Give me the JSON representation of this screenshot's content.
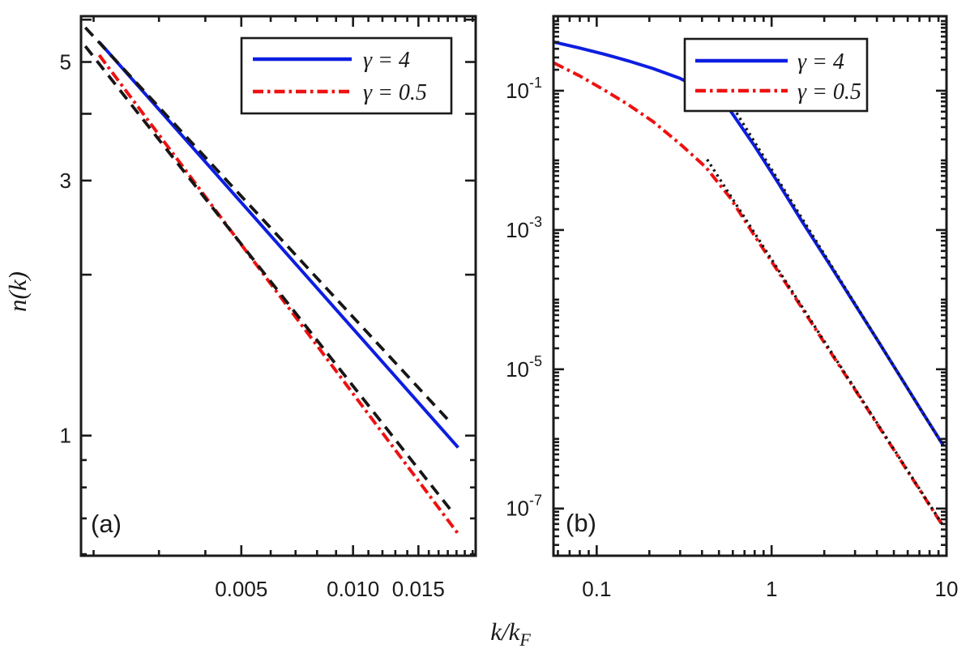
{
  "figure": {
    "xlabel_main": "k/k",
    "xlabel_sub": "F",
    "ylabel": "n(k)",
    "background": "#ffffff",
    "frame_color": "#1a1a1a",
    "legend_items": [
      {
        "label": "γ = 4",
        "series": "gamma4"
      },
      {
        "label": "γ = 0.5",
        "series": "gamma05"
      }
    ]
  },
  "chart_data": [
    {
      "id": "a",
      "tag": "(a)",
      "type": "line",
      "x_scale": "log",
      "y_scale": "log",
      "xlim": [
        0.00185,
        0.0214
      ],
      "ylim": [
        0.596,
        6.09
      ],
      "x_ticks_major": [
        {
          "v": 0.005,
          "label": "0.005"
        },
        {
          "v": 0.01,
          "label": "0.010"
        },
        {
          "v": 0.015,
          "label": "0.015"
        }
      ],
      "x_ticks_minor": [
        0.002,
        0.003,
        0.004,
        0.006,
        0.007,
        0.008,
        0.009,
        0.011,
        0.012,
        0.013,
        0.014,
        0.016,
        0.017,
        0.018,
        0.019,
        0.02,
        0.021
      ],
      "y_ticks_major": [
        {
          "v": 1,
          "label": "1"
        },
        {
          "v": 2
        },
        {
          "v": 3,
          "label": "3"
        },
        {
          "v": 4
        },
        {
          "v": 5,
          "label": "5"
        },
        {
          "v": 6
        }
      ],
      "y_ticks_minor": [
        0.6,
        0.7,
        0.8,
        0.9
      ],
      "series": [
        {
          "name": "gamma4",
          "legend": "γ = 4",
          "color": "#0d1ee0",
          "style": "solid",
          "width": 4,
          "points": [
            [
              0.00207,
              5.45
            ],
            [
              0.0192,
              0.95
            ]
          ]
        },
        {
          "name": "gamma05",
          "legend": "γ = 0.5",
          "color": "#ee1111",
          "style": "dashdot",
          "width": 4,
          "points": [
            [
              0.00207,
              5.15
            ],
            [
              0.0192,
              0.655
            ]
          ]
        },
        {
          "name": "gamma4-powerlaw-fit",
          "color": "#161616",
          "style": "dashed",
          "width": 3.8,
          "points": [
            [
              0.0019,
              5.8
            ],
            [
              0.0185,
              1.05
            ]
          ]
        },
        {
          "name": "gamma05-powerlaw-fit",
          "color": "#161616",
          "style": "dashed",
          "width": 3.8,
          "points": [
            [
              0.0019,
              5.35
            ],
            [
              0.0185,
              0.72
            ]
          ]
        }
      ],
      "show_legend": true
    },
    {
      "id": "b",
      "tag": "(b)",
      "type": "line",
      "x_scale": "log",
      "y_scale": "log",
      "xlim": [
        0.0566,
        10
      ],
      "ylim": [
        2.1e-08,
        1.175
      ],
      "x_ticks_major": [
        {
          "v": 0.1,
          "label": "0.1"
        },
        {
          "v": 1,
          "label": "1"
        },
        {
          "v": 10,
          "label": "10"
        }
      ],
      "x_ticks_minor": [
        0.06,
        0.07,
        0.08,
        0.09,
        0.2,
        0.3,
        0.4,
        0.5,
        0.6,
        0.7,
        0.8,
        0.9,
        2,
        3,
        4,
        5,
        6,
        7,
        8,
        9
      ],
      "y_ticks_major": [
        {
          "v": 0.1,
          "sup": "-1"
        },
        {
          "v": 0.001,
          "sup": "-3"
        },
        {
          "v": 1e-05,
          "sup": "-5"
        },
        {
          "v": 1e-07,
          "sup": "-7"
        }
      ],
      "y_ticks_minor": "auto-log",
      "series": [
        {
          "name": "gamma4",
          "legend": "γ = 4",
          "color": "#0d1ee0",
          "style": "solid",
          "width": 4,
          "points": [
            [
              0.057,
              0.5
            ],
            [
              0.08,
              0.41
            ],
            [
              0.11,
              0.335
            ],
            [
              0.15,
              0.27
            ],
            [
              0.21,
              0.208
            ],
            [
              0.3,
              0.15
            ],
            [
              0.42,
              0.098
            ],
            [
              0.58,
              0.052
            ],
            [
              0.8,
              0.016
            ],
            [
              1.1,
              0.0046
            ],
            [
              1.5,
              0.0013
            ],
            [
              2.1,
              0.00035
            ],
            [
              2.9,
              9.7e-05
            ],
            [
              4.0,
              2.7e-05
            ],
            [
              5.5,
              7.5e-06
            ],
            [
              7.5,
              2.15e-06
            ],
            [
              9.6,
              8e-07
            ]
          ]
        },
        {
          "name": "gamma05",
          "legend": "γ = 0.5",
          "color": "#ee1111",
          "style": "dashdot",
          "width": 4,
          "points": [
            [
              0.057,
              0.25
            ],
            [
              0.08,
              0.163
            ],
            [
              0.11,
              0.103
            ],
            [
              0.15,
              0.064
            ],
            [
              0.21,
              0.036
            ],
            [
              0.3,
              0.0172
            ],
            [
              0.42,
              0.008
            ],
            [
              0.58,
              0.0029
            ],
            [
              0.8,
              0.00082
            ],
            [
              1.1,
              0.000245
            ],
            [
              1.5,
              7.4e-05
            ],
            [
              2.1,
              2e-05
            ],
            [
              2.9,
              5.8e-06
            ],
            [
              4.0,
              1.66e-06
            ],
            [
              5.5,
              4.8e-07
            ],
            [
              7.5,
              1.44e-07
            ],
            [
              9.6,
              5.5e-08
            ]
          ]
        },
        {
          "name": "gamma4-tail-asymptote",
          "color": "#161616",
          "style": "dotted",
          "width": 3.4,
          "points": [
            [
              0.63,
              0.048
            ],
            [
              9.7,
              7.6e-07
            ]
          ]
        },
        {
          "name": "gamma05-tail-asymptote",
          "color": "#161616",
          "style": "dotted",
          "width": 3.4,
          "points": [
            [
              0.428,
              0.0103
            ],
            [
              9.7,
              5.4e-08
            ]
          ]
        }
      ],
      "show_legend": true
    }
  ]
}
